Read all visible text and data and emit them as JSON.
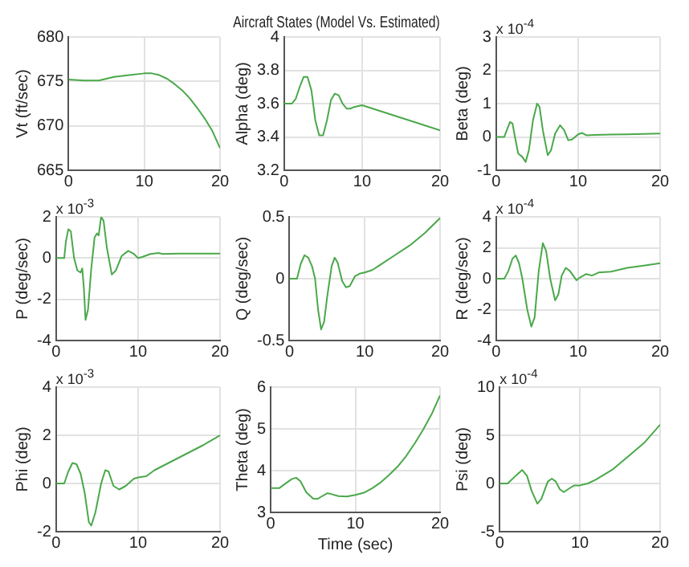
{
  "chart_data": [
    {
      "type": "line",
      "ylabel": "Vt (ft/sec)",
      "x": [
        0,
        2,
        4,
        5,
        6,
        8,
        10,
        11,
        12,
        13,
        14,
        15,
        16,
        17,
        18,
        19,
        20
      ],
      "values": [
        675.2,
        675.1,
        675.1,
        675.3,
        675.5,
        675.7,
        675.9,
        675.9,
        675.7,
        675.3,
        674.7,
        674.0,
        673.1,
        672.0,
        670.8,
        669.4,
        667.5
      ],
      "color": "#4aa84a",
      "xlim": [
        0,
        20
      ],
      "xticks": [
        0,
        10,
        20
      ],
      "ylim": [
        665,
        680
      ],
      "yticks": [
        665,
        670,
        675,
        680
      ],
      "grid": true
    },
    {
      "type": "line",
      "title": "Aircraft States (Model Vs. Estimated)",
      "ylabel": "Alpha (deg)",
      "x": [
        0,
        1,
        1.5,
        2,
        2.5,
        3,
        3.5,
        4,
        4.5,
        5,
        5.5,
        6,
        6.5,
        7,
        7.5,
        8,
        8.5,
        9,
        10,
        12,
        14,
        16,
        18,
        20
      ],
      "values": [
        3.6,
        3.6,
        3.63,
        3.7,
        3.76,
        3.76,
        3.68,
        3.5,
        3.41,
        3.41,
        3.5,
        3.62,
        3.66,
        3.65,
        3.6,
        3.57,
        3.57,
        3.58,
        3.59,
        3.56,
        3.53,
        3.5,
        3.47,
        3.44
      ],
      "color": "#4aa84a",
      "xlim": [
        0,
        20
      ],
      "xticks": [
        0,
        10,
        20
      ],
      "ylim": [
        3.2,
        4
      ],
      "yticks": [
        3.2,
        3.4,
        3.6,
        3.8,
        4
      ],
      "grid": true
    },
    {
      "type": "line",
      "ylabel": "Beta (deg)",
      "annotations": [
        "x 10$^{-4}$"
      ],
      "x": [
        0,
        1,
        1.3,
        1.7,
        2,
        2.3,
        2.7,
        3.2,
        3.6,
        4,
        4.5,
        5,
        5.3,
        5.7,
        6.3,
        6.7,
        7.2,
        7.8,
        8.3,
        8.8,
        9.3,
        10,
        10.5,
        11,
        12,
        14,
        16,
        18,
        20
      ],
      "values": [
        0,
        0,
        0.2,
        0.45,
        0.4,
        0,
        -0.5,
        -0.6,
        -0.75,
        -0.4,
        0.5,
        1.0,
        0.9,
        0.2,
        -0.55,
        -0.4,
        0.1,
        0.35,
        0.2,
        -0.1,
        -0.07,
        0.08,
        0.12,
        0.05,
        0.06,
        0.07,
        0.08,
        0.09,
        0.1
      ],
      "color": "#4aa84a",
      "xlim": [
        0,
        20
      ],
      "xticks": [
        0,
        10,
        20
      ],
      "ylim": [
        -1,
        3
      ],
      "yticks": [
        -1,
        0,
        1,
        2,
        3
      ],
      "grid": true
    },
    {
      "type": "line",
      "ylabel": "P (deg/sec)",
      "annotations": [
        "x 10$^{-3}$"
      ],
      "x": [
        0,
        1,
        1.2,
        1.5,
        1.8,
        2.2,
        2.6,
        3,
        3.2,
        3.4,
        3.6,
        3.9,
        4.3,
        4.7,
        5,
        5.2,
        5.5,
        5.8,
        6.2,
        6.8,
        7.3,
        8,
        8.8,
        9.5,
        10,
        10.5,
        11.5,
        12.5,
        13,
        15,
        20
      ],
      "values": [
        0,
        0,
        0.8,
        1.4,
        1.3,
        0,
        -0.6,
        -0.7,
        -0.5,
        -1.5,
        -3.0,
        -2.5,
        -0.5,
        1.0,
        1.2,
        1.1,
        2.0,
        1.8,
        0.5,
        -0.8,
        -0.6,
        0.1,
        0.35,
        0.2,
        0,
        0.05,
        0.2,
        0.25,
        0.2,
        0.22,
        0.22
      ],
      "color": "#4aa84a",
      "xlim": [
        0,
        20
      ],
      "xticks": [
        0,
        10,
        20
      ],
      "ylim": [
        -4,
        2
      ],
      "yticks": [
        -4,
        -2,
        0,
        2
      ],
      "grid": true
    },
    {
      "type": "line",
      "ylabel": "Q (deg/sec)",
      "x": [
        0,
        1,
        1.5,
        2,
        2.5,
        3,
        3.4,
        3.8,
        4.2,
        4.6,
        5,
        5.6,
        6,
        6.4,
        7,
        7.5,
        8,
        8.7,
        9.3,
        10,
        11,
        12,
        14,
        16,
        18,
        20
      ],
      "values": [
        0,
        0,
        0.12,
        0.19,
        0.17,
        0.1,
        0,
        -0.25,
        -0.41,
        -0.35,
        -0.15,
        0.1,
        0.17,
        0.13,
        -0.02,
        -0.07,
        -0.06,
        0.02,
        0.04,
        0.05,
        0.07,
        0.11,
        0.19,
        0.27,
        0.37,
        0.49
      ],
      "color": "#4aa84a",
      "xlim": [
        0,
        20
      ],
      "xticks": [
        0,
        10,
        20
      ],
      "ylim": [
        -0.5,
        0.5
      ],
      "yticks": [
        -0.5,
        0,
        0.5
      ],
      "grid": true
    },
    {
      "type": "line",
      "ylabel": "R (deg/sec)",
      "annotations": [
        "x 10$^{-4}$"
      ],
      "x": [
        0,
        1,
        1.5,
        2,
        2.4,
        2.8,
        3.2,
        3.8,
        4.3,
        4.7,
        5.2,
        5.7,
        6.1,
        6.6,
        7.2,
        7.6,
        8,
        8.5,
        9,
        9.8,
        10.3,
        11,
        11.7,
        12.5,
        14,
        16,
        18,
        20
      ],
      "values": [
        0,
        0,
        0.5,
        1.3,
        1.5,
        1.0,
        0,
        -2.0,
        -3.1,
        -2.5,
        0.5,
        2.3,
        1.8,
        0,
        -1.4,
        -1.0,
        0.2,
        0.7,
        0.5,
        -0.1,
        0.1,
        0.3,
        0.2,
        0.4,
        0.45,
        0.7,
        0.85,
        1.0
      ],
      "color": "#4aa84a",
      "xlim": [
        0,
        20
      ],
      "xticks": [
        0,
        10,
        20
      ],
      "ylim": [
        -4,
        4
      ],
      "yticks": [
        -4,
        -2,
        0,
        2,
        4
      ],
      "grid": true
    },
    {
      "type": "line",
      "ylabel": "Phi (deg)",
      "annotations": [
        "x 10$^{-3}$"
      ],
      "x": [
        0,
        1,
        1.5,
        2,
        2.5,
        3,
        3.5,
        4,
        4.3,
        4.8,
        5.5,
        6,
        6.4,
        7,
        7.7,
        8.5,
        9.5,
        10,
        11,
        12,
        14,
        16,
        18,
        20
      ],
      "values": [
        0,
        0,
        0.5,
        0.85,
        0.8,
        0.4,
        -0.4,
        -1.6,
        -1.75,
        -1.2,
        0,
        0.55,
        0.5,
        -0.1,
        -0.25,
        -0.1,
        0.2,
        0.25,
        0.3,
        0.55,
        0.9,
        1.25,
        1.6,
        2.0
      ],
      "color": "#4aa84a",
      "xlim": [
        0,
        20
      ],
      "xticks": [
        0,
        10,
        20
      ],
      "ylim": [
        -2,
        4
      ],
      "yticks": [
        -2,
        0,
        2,
        4
      ],
      "grid": true
    },
    {
      "type": "line",
      "ylabel": "Theta (deg)",
      "xlabel": "Time (sec)",
      "x": [
        0,
        1,
        1.8,
        2.5,
        3,
        3.5,
        4.2,
        5,
        5.5,
        6,
        6.7,
        7.3,
        8,
        9,
        10,
        11,
        12,
        13,
        14,
        15,
        16,
        17,
        18,
        19,
        20
      ],
      "values": [
        3.58,
        3.58,
        3.7,
        3.8,
        3.83,
        3.75,
        3.48,
        3.33,
        3.32,
        3.38,
        3.46,
        3.43,
        3.39,
        3.38,
        3.42,
        3.47,
        3.58,
        3.72,
        3.9,
        4.1,
        4.35,
        4.65,
        4.98,
        5.35,
        5.8
      ],
      "color": "#4aa84a",
      "xlim": [
        0,
        20
      ],
      "xticks": [
        0,
        10,
        20
      ],
      "ylim": [
        3,
        6
      ],
      "yticks": [
        3,
        4,
        5,
        6
      ],
      "grid": true
    },
    {
      "type": "line",
      "ylabel": "Psi (deg)",
      "annotations": [
        "x 10$^{-4}$"
      ],
      "x": [
        0,
        1,
        2,
        2.8,
        3.4,
        4,
        4.7,
        5.2,
        6,
        6.5,
        7,
        7.5,
        8,
        8.7,
        9.3,
        10,
        11,
        12,
        13,
        14,
        16,
        18,
        20
      ],
      "values": [
        0,
        0,
        0.8,
        1.4,
        0.8,
        -0.8,
        -2.1,
        -1.6,
        0.2,
        0.5,
        0.2,
        -0.6,
        -0.9,
        -0.5,
        -0.2,
        -0.2,
        0,
        0.4,
        0.9,
        1.4,
        2.8,
        4.2,
        6.1
      ],
      "color": "#4aa84a",
      "xlim": [
        0,
        20
      ],
      "xticks": [
        0,
        10,
        20
      ],
      "ylim": [
        -5,
        10
      ],
      "yticks": [
        -5,
        0,
        5,
        10
      ],
      "grid": true
    }
  ]
}
